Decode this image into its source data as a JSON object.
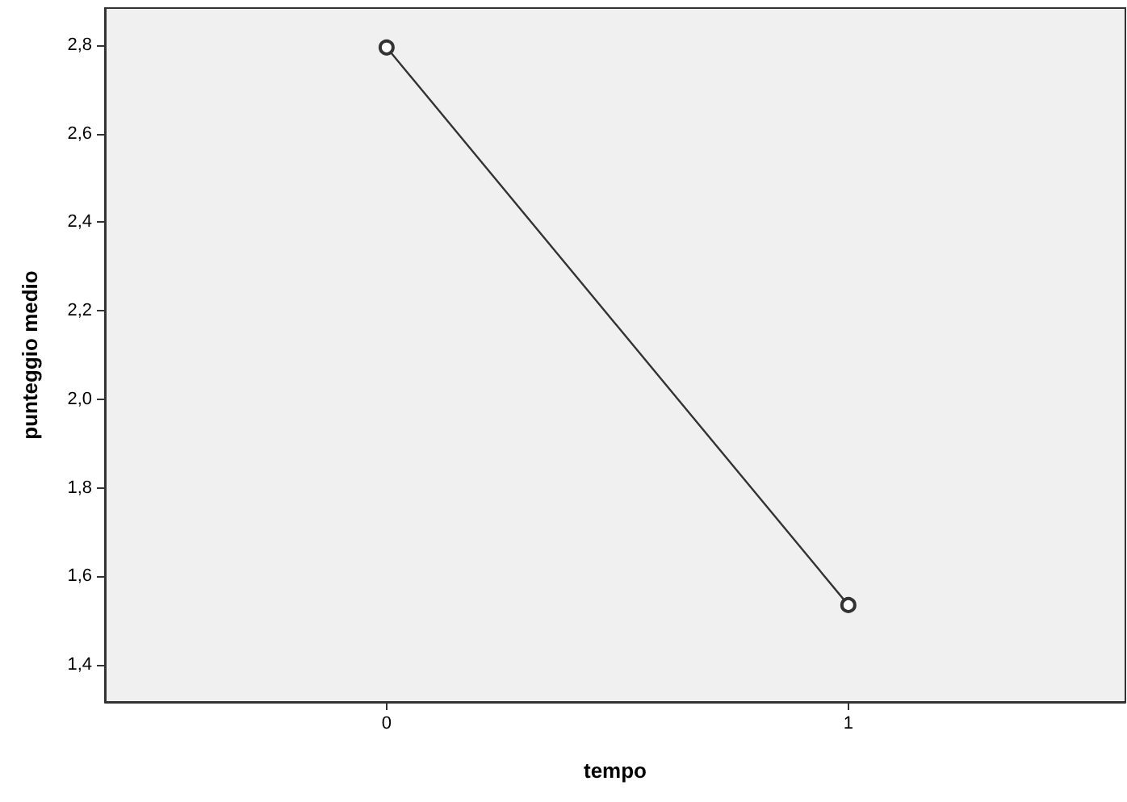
{
  "chart_data": {
    "type": "line",
    "xlabel": "tempo",
    "ylabel": "punteggio medio",
    "x": [
      0,
      1
    ],
    "series": [
      {
        "color": "#333333",
        "values": [
          2.795,
          1.535
        ]
      }
    ],
    "xlim": [
      -0.61,
      1.6
    ],
    "xticks": [
      0,
      1
    ],
    "ylim": [
      1.316,
      2.884
    ],
    "yticks": [
      {
        "value": 1.4,
        "label": "1,4"
      },
      {
        "value": 1.6,
        "label": "1,6"
      },
      {
        "value": 1.8,
        "label": "1,8"
      },
      {
        "value": 2.0,
        "label": "2,0"
      },
      {
        "value": 2.2,
        "label": "2,2"
      },
      {
        "value": 2.4,
        "label": "2,4"
      },
      {
        "value": 2.6,
        "label": "2,6"
      },
      {
        "value": 2.8,
        "label": "2,8"
      }
    ],
    "grid": false,
    "marker": "circle",
    "line_style": "solid"
  }
}
